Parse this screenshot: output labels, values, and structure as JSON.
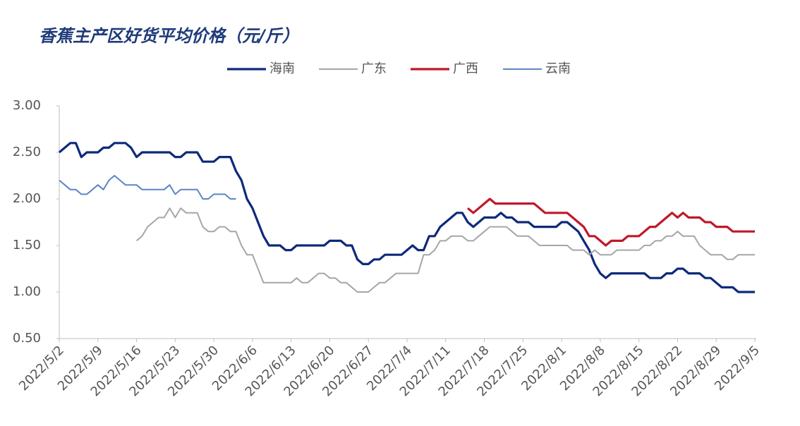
{
  "chart_data": {
    "type": "line",
    "title": "香蕉主产区好货平均价格（元/斤）",
    "x": [
      "2022/5/2",
      "2022/5/3",
      "2022/5/4",
      "2022/5/5",
      "2022/5/6",
      "2022/5/7",
      "2022/5/8",
      "2022/5/9",
      "2022/5/10",
      "2022/5/11",
      "2022/5/12",
      "2022/5/13",
      "2022/5/14",
      "2022/5/15",
      "2022/5/16",
      "2022/5/17",
      "2022/5/18",
      "2022/5/19",
      "2022/5/20",
      "2022/5/21",
      "2022/5/22",
      "2022/5/23",
      "2022/5/24",
      "2022/5/25",
      "2022/5/26",
      "2022/5/27",
      "2022/5/28",
      "2022/5/29",
      "2022/5/30",
      "2022/5/31",
      "2022/6/1",
      "2022/6/2",
      "2022/6/3",
      "2022/6/4",
      "2022/6/5",
      "2022/6/6",
      "2022/6/7",
      "2022/6/8",
      "2022/6/9",
      "2022/6/10",
      "2022/6/11",
      "2022/6/12",
      "2022/6/13",
      "2022/6/14",
      "2022/6/15",
      "2022/6/16",
      "2022/6/17",
      "2022/6/18",
      "2022/6/19",
      "2022/6/20",
      "2022/6/21",
      "2022/6/22",
      "2022/6/23",
      "2022/6/24",
      "2022/6/25",
      "2022/6/26",
      "2022/6/27",
      "2022/6/28",
      "2022/6/29",
      "2022/6/30",
      "2022/7/1",
      "2022/7/2",
      "2022/7/3",
      "2022/7/4",
      "2022/7/5",
      "2022/7/6",
      "2022/7/7",
      "2022/7/8",
      "2022/7/9",
      "2022/7/10",
      "2022/7/11",
      "2022/7/12",
      "2022/7/13",
      "2022/7/14",
      "2022/7/15",
      "2022/7/16",
      "2022/7/17",
      "2022/7/18",
      "2022/7/19",
      "2022/7/20",
      "2022/7/21",
      "2022/7/22",
      "2022/7/23",
      "2022/7/24",
      "2022/7/25",
      "2022/7/26",
      "2022/7/27",
      "2022/7/28",
      "2022/7/29",
      "2022/7/30",
      "2022/7/31",
      "2022/8/1",
      "2022/8/2",
      "2022/8/3",
      "2022/8/4",
      "2022/8/5",
      "2022/8/6",
      "2022/8/7",
      "2022/8/8",
      "2022/8/9",
      "2022/8/10",
      "2022/8/11",
      "2022/8/12",
      "2022/8/13",
      "2022/8/14",
      "2022/8/15",
      "2022/8/16",
      "2022/8/17",
      "2022/8/18",
      "2022/8/19",
      "2022/8/20",
      "2022/8/21",
      "2022/8/22",
      "2022/8/23",
      "2022/8/24",
      "2022/8/25",
      "2022/8/26",
      "2022/8/27",
      "2022/8/28",
      "2022/8/29",
      "2022/8/30",
      "2022/8/31",
      "2022/9/1",
      "2022/9/2",
      "2022/9/3",
      "2022/9/4",
      "2022/9/5"
    ],
    "xticks": [
      "2022/5/2",
      "2022/5/9",
      "2022/5/16",
      "2022/5/23",
      "2022/5/30",
      "2022/6/6",
      "2022/6/13",
      "2022/6/20",
      "2022/6/27",
      "2022/7/4",
      "2022/7/11",
      "2022/7/18",
      "2022/7/25",
      "2022/8/1",
      "2022/8/8",
      "2022/8/15",
      "2022/8/22",
      "2022/8/29",
      "2022/9/5"
    ],
    "ylim": [
      0.5,
      3.0
    ],
    "yticks": [
      {
        "value": 0.5,
        "label": "0.50"
      },
      {
        "value": 1.0,
        "label": "1.00"
      },
      {
        "value": 1.5,
        "label": "1.50"
      },
      {
        "value": 2.0,
        "label": "2.00"
      },
      {
        "value": 2.5,
        "label": "2.50"
      },
      {
        "value": 3.0,
        "label": "3.00"
      }
    ],
    "grid": false,
    "series": [
      {
        "name": "海南",
        "color": "#0d2a7a",
        "values": [
          2.5,
          2.55,
          2.6,
          2.6,
          2.45,
          2.5,
          2.5,
          2.5,
          2.55,
          2.55,
          2.6,
          2.6,
          2.6,
          2.55,
          2.45,
          2.5,
          2.5,
          2.5,
          2.5,
          2.5,
          2.5,
          2.45,
          2.45,
          2.5,
          2.5,
          2.5,
          2.4,
          2.4,
          2.4,
          2.45,
          2.45,
          2.45,
          2.3,
          2.2,
          2.0,
          1.9,
          1.75,
          1.6,
          1.5,
          1.5,
          1.5,
          1.45,
          1.45,
          1.5,
          1.5,
          1.5,
          1.5,
          1.5,
          1.5,
          1.55,
          1.55,
          1.55,
          1.5,
          1.5,
          1.35,
          1.3,
          1.3,
          1.35,
          1.35,
          1.4,
          1.4,
          1.4,
          1.4,
          1.45,
          1.5,
          1.45,
          1.45,
          1.6,
          1.6,
          1.7,
          1.75,
          1.8,
          1.85,
          1.85,
          1.75,
          1.7,
          1.75,
          1.8,
          1.8,
          1.8,
          1.85,
          1.8,
          1.8,
          1.75,
          1.75,
          1.75,
          1.7,
          1.7,
          1.7,
          1.7,
          1.7,
          1.75,
          1.75,
          1.7,
          1.65,
          1.55,
          1.45,
          1.3,
          1.2,
          1.15,
          1.2,
          1.2,
          1.2,
          1.2,
          1.2,
          1.2,
          1.2,
          1.15,
          1.15,
          1.15,
          1.2,
          1.2,
          1.25,
          1.25,
          1.2,
          1.2,
          1.2,
          1.15,
          1.15,
          1.1,
          1.05,
          1.05,
          1.05,
          1.0,
          1.0,
          1.0,
          1.0
        ]
      },
      {
        "name": "广东",
        "color": "#a6a6a6",
        "values": [
          null,
          null,
          null,
          null,
          null,
          null,
          null,
          null,
          null,
          null,
          null,
          null,
          null,
          null,
          1.55,
          1.6,
          1.7,
          1.75,
          1.8,
          1.8,
          1.9,
          1.8,
          1.9,
          1.85,
          1.85,
          1.85,
          1.7,
          1.65,
          1.65,
          1.7,
          1.7,
          1.65,
          1.65,
          1.5,
          1.4,
          1.4,
          1.25,
          1.1,
          1.1,
          1.1,
          1.1,
          1.1,
          1.1,
          1.15,
          1.1,
          1.1,
          1.15,
          1.2,
          1.2,
          1.15,
          1.15,
          1.1,
          1.1,
          1.05,
          1.0,
          1.0,
          1.0,
          1.05,
          1.1,
          1.1,
          1.15,
          1.2,
          1.2,
          1.2,
          1.2,
          1.2,
          1.4,
          1.4,
          1.45,
          1.55,
          1.55,
          1.6,
          1.6,
          1.6,
          1.55,
          1.55,
          1.6,
          1.65,
          1.7,
          1.7,
          1.7,
          1.7,
          1.65,
          1.6,
          1.6,
          1.6,
          1.55,
          1.5,
          1.5,
          1.5,
          1.5,
          1.5,
          1.5,
          1.45,
          1.45,
          1.45,
          1.4,
          1.45,
          1.4,
          1.4,
          1.4,
          1.45,
          1.45,
          1.45,
          1.45,
          1.45,
          1.5,
          1.5,
          1.55,
          1.55,
          1.6,
          1.6,
          1.65,
          1.6,
          1.6,
          1.6,
          1.5,
          1.45,
          1.4,
          1.4,
          1.4,
          1.35,
          1.35,
          1.4,
          1.4,
          1.4,
          1.4
        ]
      },
      {
        "name": "广西",
        "color": "#c0182a",
        "values": [
          null,
          null,
          null,
          null,
          null,
          null,
          null,
          null,
          null,
          null,
          null,
          null,
          null,
          null,
          null,
          null,
          null,
          null,
          null,
          null,
          null,
          null,
          null,
          null,
          null,
          null,
          null,
          null,
          null,
          null,
          null,
          null,
          null,
          null,
          null,
          null,
          null,
          null,
          null,
          null,
          null,
          null,
          null,
          null,
          null,
          null,
          null,
          null,
          null,
          null,
          null,
          null,
          null,
          null,
          null,
          null,
          null,
          null,
          null,
          null,
          null,
          null,
          null,
          null,
          null,
          null,
          null,
          null,
          null,
          null,
          null,
          null,
          null,
          null,
          1.9,
          1.85,
          1.9,
          1.95,
          2.0,
          1.95,
          1.95,
          1.95,
          1.95,
          1.95,
          1.95,
          1.95,
          1.95,
          1.9,
          1.85,
          1.85,
          1.85,
          1.85,
          1.85,
          1.8,
          1.75,
          1.7,
          1.6,
          1.6,
          1.55,
          1.5,
          1.55,
          1.55,
          1.55,
          1.6,
          1.6,
          1.6,
          1.65,
          1.7,
          1.7,
          1.75,
          1.8,
          1.85,
          1.8,
          1.85,
          1.8,
          1.8,
          1.8,
          1.75,
          1.75,
          1.7,
          1.7,
          1.7,
          1.65,
          1.65,
          1.65,
          1.65,
          1.65
        ]
      },
      {
        "name": "云南",
        "color": "#5b86c5",
        "values": [
          2.2,
          2.15,
          2.1,
          2.1,
          2.05,
          2.05,
          2.1,
          2.15,
          2.1,
          2.2,
          2.25,
          2.2,
          2.15,
          2.15,
          2.15,
          2.1,
          2.1,
          2.1,
          2.1,
          2.1,
          2.15,
          2.05,
          2.1,
          2.1,
          2.1,
          2.1,
          2.0,
          2.0,
          2.05,
          2.05,
          2.05,
          2.0,
          2.0,
          null,
          null,
          null,
          null,
          null,
          null,
          null,
          null,
          null,
          null,
          null,
          null,
          null,
          null,
          null,
          null,
          null,
          null,
          null,
          null,
          null,
          null,
          null,
          null,
          null,
          null,
          null,
          null,
          null,
          null,
          null,
          null,
          null,
          null,
          null,
          null,
          null,
          null,
          null,
          null,
          null,
          null,
          null,
          null,
          null,
          null,
          null,
          null,
          null,
          null,
          null,
          null,
          null,
          null,
          null,
          null,
          null,
          null,
          null,
          null,
          null,
          null,
          null,
          null,
          null,
          null,
          null,
          null,
          null,
          null,
          null,
          null,
          null,
          null,
          null,
          null,
          null,
          null,
          null,
          null,
          null,
          null,
          null,
          null,
          null,
          null,
          null,
          null,
          null,
          null,
          null,
          null,
          null,
          null
        ]
      }
    ]
  }
}
